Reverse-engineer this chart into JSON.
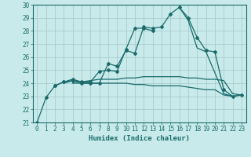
{
  "xlabel": "Humidex (Indice chaleur)",
  "bg_color": "#c8eaea",
  "grid_color": "#aacccc",
  "line_color": "#1a6b6b",
  "xlim": [
    -0.5,
    23.5
  ],
  "ylim": [
    21,
    30
  ],
  "yticks": [
    21,
    22,
    23,
    24,
    25,
    26,
    27,
    28,
    29,
    30
  ],
  "xticks": [
    0,
    1,
    2,
    3,
    4,
    5,
    6,
    7,
    8,
    9,
    10,
    11,
    12,
    13,
    14,
    15,
    16,
    17,
    18,
    19,
    20,
    21,
    22,
    23
  ],
  "series": [
    [
      21.0,
      22.9,
      23.8,
      24.1,
      24.2,
      24.0,
      24.0,
      24.0,
      25.5,
      25.3,
      26.5,
      26.3,
      28.3,
      28.2,
      28.3,
      29.3,
      29.8,
      29.0,
      27.5,
      26.5,
      26.4,
      23.5,
      23.0,
      23.1
    ],
    [
      null,
      null,
      23.8,
      24.1,
      24.3,
      24.1,
      24.1,
      24.9,
      25.0,
      24.9,
      26.6,
      28.2,
      28.2,
      28.0,
      null,
      null,
      null,
      null,
      null,
      null,
      null,
      null,
      null,
      null
    ],
    [
      null,
      null,
      null,
      24.0,
      24.2,
      24.1,
      24.2,
      24.3,
      24.3,
      24.3,
      24.4,
      24.4,
      24.5,
      24.5,
      24.5,
      24.5,
      24.5,
      24.4,
      24.4,
      24.3,
      24.3,
      24.2,
      23.2,
      23.1
    ],
    [
      null,
      null,
      null,
      null,
      24.0,
      24.0,
      24.0,
      24.0,
      24.0,
      24.0,
      24.0,
      23.9,
      23.9,
      23.8,
      23.8,
      23.8,
      23.8,
      23.7,
      23.6,
      23.5,
      23.5,
      23.1,
      23.0,
      23.1
    ],
    [
      null,
      null,
      null,
      null,
      null,
      null,
      null,
      null,
      null,
      null,
      null,
      null,
      null,
      null,
      null,
      null,
      29.8,
      28.8,
      26.7,
      26.4,
      24.8,
      23.2,
      23.0,
      null
    ]
  ],
  "marker_series": [
    0,
    1
  ],
  "xlabel_fontsize": 6.5,
  "tick_fontsize": 5.5
}
